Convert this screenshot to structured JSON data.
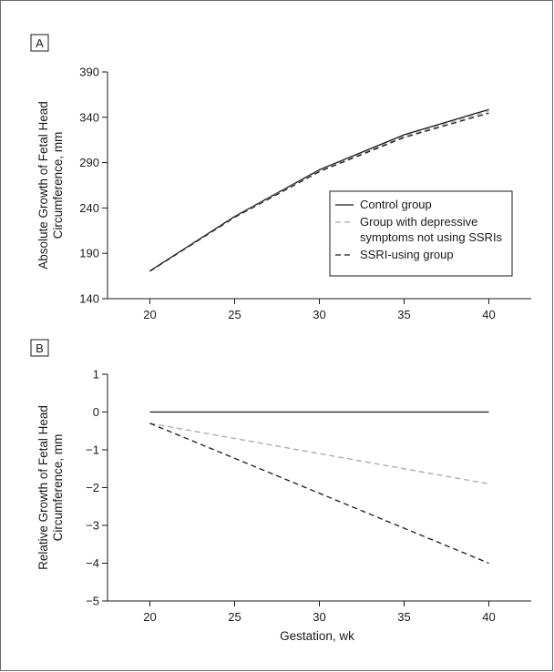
{
  "colors": {
    "control": "#1a1a1a",
    "depressive": "#a6a6a6",
    "ssri": "#1a1a1a",
    "axis": "#1a1a1a"
  },
  "chart_data": [
    {
      "panel_label": "A",
      "type": "line",
      "title": "",
      "xlabel": "",
      "ylabel_lines": [
        "Absolute Growth of Fetal Head",
        "Circumference, mm"
      ],
      "xlim": [
        17.5,
        42.5
      ],
      "ylim": [
        140,
        390
      ],
      "x_ticks": [
        20,
        25,
        30,
        35,
        40
      ],
      "y_ticks": [
        140,
        190,
        240,
        290,
        340,
        390
      ],
      "x_tick_labels": [
        "20",
        "25",
        "30",
        "35",
        "40"
      ],
      "y_tick_labels": [
        "140",
        "190",
        "240",
        "290",
        "340",
        "390"
      ],
      "grid": false,
      "legend_position": "right",
      "legend": [
        {
          "lines": [
            "Control group"
          ],
          "style": "solid",
          "color": "#1a1a1a"
        },
        {
          "lines": [
            "Group with depressive",
            "symptoms not using SSRIs"
          ],
          "style": "dashed",
          "color": "#a6a6a6"
        },
        {
          "lines": [
            "SSRI-using group"
          ],
          "style": "dashed",
          "color": "#1a1a1a"
        }
      ],
      "series": [
        {
          "style": "solid",
          "color": "#1a1a1a",
          "x": [
            20,
            25,
            30,
            35,
            40
          ],
          "y": [
            170.6,
            230.7,
            282.1,
            320.7,
            348.6
          ]
        },
        {
          "style": "dashed",
          "color": "#a6a6a6",
          "x": [
            20,
            25,
            30,
            35,
            40
          ],
          "y": [
            170.3,
            230.2,
            281.0,
            319.2,
            346.7
          ]
        },
        {
          "style": "dashed",
          "color": "#1a1a1a",
          "x": [
            20,
            25,
            30,
            35,
            40
          ],
          "y": [
            170.3,
            229.7,
            280.1,
            317.8,
            344.6
          ]
        }
      ]
    },
    {
      "panel_label": "B",
      "type": "line",
      "title": "",
      "xlabel": "Gestation, wk",
      "ylabel_lines": [
        "Relative Growth of Fetal Head",
        "Circumference, mm"
      ],
      "xlim": [
        17.5,
        42.5
      ],
      "ylim": [
        -5,
        1
      ],
      "x_ticks": [
        20,
        25,
        30,
        35,
        40
      ],
      "y_ticks": [
        -5,
        -4,
        -3,
        -2,
        -1,
        0,
        1
      ],
      "x_tick_labels": [
        "20",
        "25",
        "30",
        "35",
        "40"
      ],
      "y_tick_labels": [
        "−5",
        "−4",
        "−3",
        "−2",
        "−1",
        "0",
        "1"
      ],
      "grid": false,
      "series": [
        {
          "style": "solid",
          "color": "#1a1a1a",
          "x": [
            20,
            40
          ],
          "y": [
            0,
            0
          ]
        },
        {
          "style": "dashed",
          "color": "#a6a6a6",
          "x": [
            20,
            40
          ],
          "y": [
            -0.3,
            -1.9
          ]
        },
        {
          "style": "dashed",
          "color": "#1a1a1a",
          "x": [
            20,
            40
          ],
          "y": [
            -0.3,
            -4.0
          ]
        }
      ]
    }
  ]
}
